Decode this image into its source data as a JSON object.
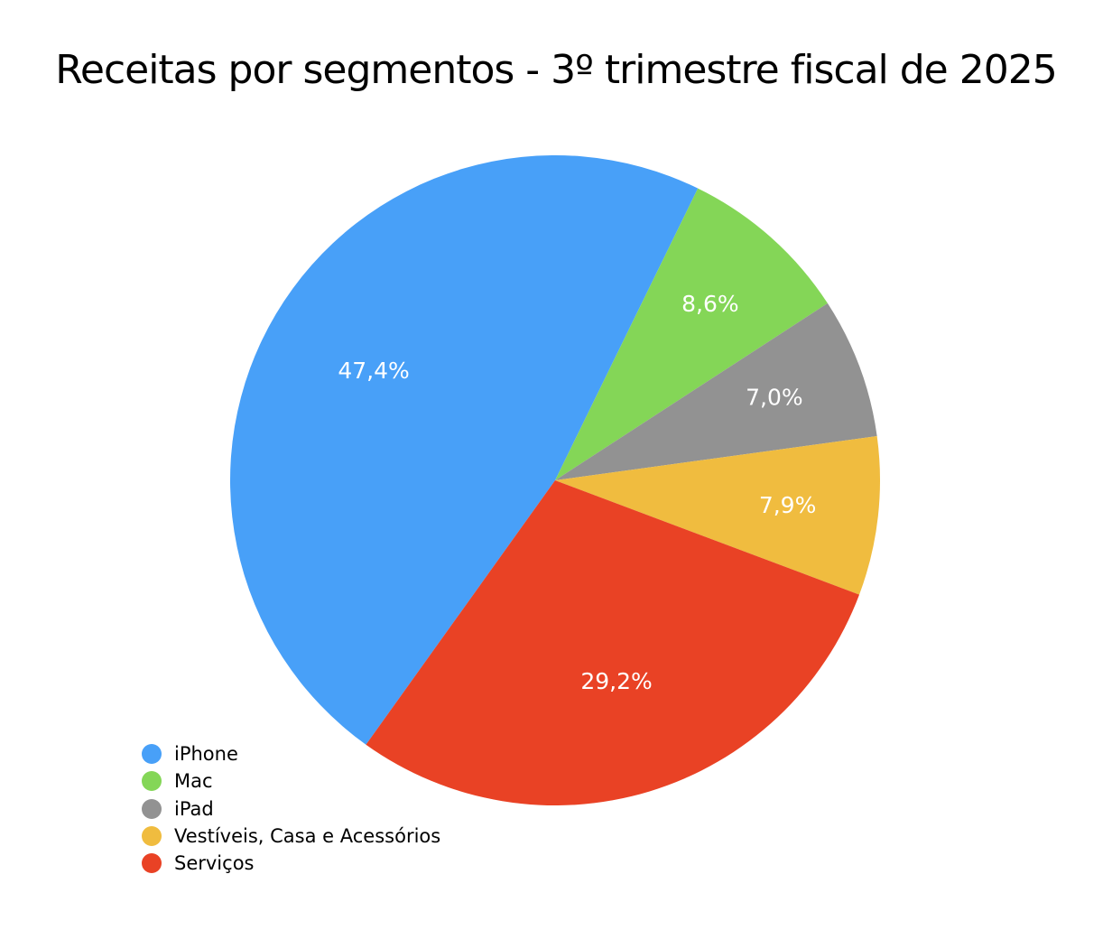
{
  "chart_data": {
    "type": "pie",
    "title": "Receitas por segmentos - 3º trimestre fiscal de 2025",
    "categories": [
      "iPhone",
      "Mac",
      "iPad",
      "Vestíveis, Casa e Acessórios",
      "Serviços"
    ],
    "values": [
      47.4,
      8.6,
      7.0,
      7.9,
      29.2
    ],
    "labels": [
      "47,4%",
      "8,6%",
      "7,0%",
      "7,9%",
      "29,2%"
    ],
    "colors": [
      "#48A0F8",
      "#84D657",
      "#929292",
      "#F0BC3F",
      "#E94225"
    ],
    "legend_position": "bottom-left"
  }
}
